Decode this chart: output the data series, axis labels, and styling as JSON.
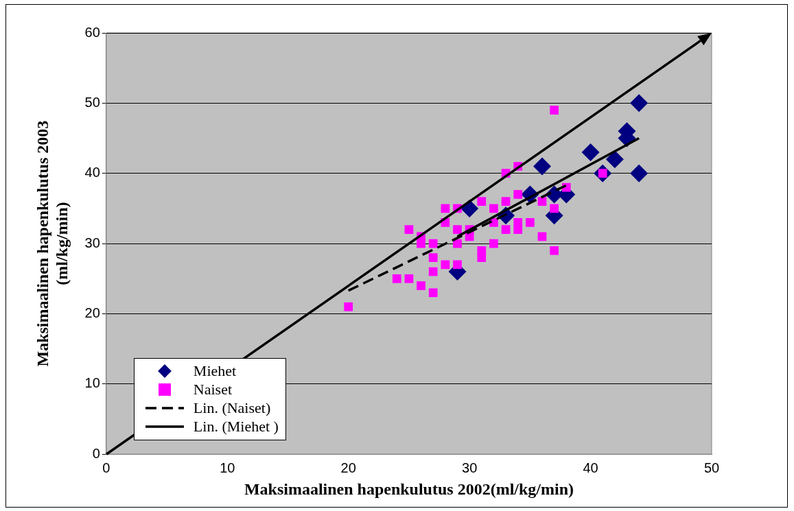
{
  "chart_data": {
    "type": "scatter",
    "xlabel": "Maksimaalinen hapenkulutus 2002(ml/kg/min)",
    "ylabel": "Maksimaalinen hapenkulutus 2003\n(ml/kg/min)",
    "xlim": [
      0,
      50
    ],
    "xticks": [
      0,
      10,
      20,
      30,
      40,
      50
    ],
    "ylim": [
      0,
      60
    ],
    "yticks": [
      0,
      10,
      20,
      30,
      40,
      50,
      60
    ],
    "grid": "y",
    "legend": "bottom left",
    "series": [
      {
        "name": "Miehet",
        "marker": "diamond",
        "color": "#000080",
        "x": [
          29,
          30,
          33,
          35,
          36,
          37,
          37,
          38,
          40,
          41,
          42,
          43,
          43,
          44,
          44
        ],
        "values": [
          26,
          35,
          34,
          37,
          41,
          37,
          34,
          37,
          43,
          40,
          42,
          46,
          45,
          50,
          40
        ]
      },
      {
        "name": "Naiset",
        "marker": "square",
        "color": "#ff00ff",
        "x": [
          20,
          24,
          25,
          25,
          26,
          26,
          26,
          27,
          27,
          27,
          27,
          28,
          28,
          28,
          29,
          29,
          29,
          29,
          30,
          30,
          31,
          31,
          31,
          32,
          32,
          32,
          33,
          33,
          33,
          34,
          34,
          34,
          34,
          35,
          36,
          36,
          37,
          37,
          37,
          38,
          41
        ],
        "values": [
          21,
          25,
          25,
          32,
          31,
          30,
          24,
          23,
          26,
          28,
          30,
          35,
          33,
          27,
          35,
          32,
          30,
          27,
          32,
          31,
          36,
          29,
          28,
          35,
          33,
          30,
          40,
          36,
          32,
          41,
          37,
          33,
          32,
          33,
          36,
          31,
          49,
          35,
          29,
          38,
          40
        ]
      },
      {
        "name": "Lin. (Naiset)",
        "type": "line",
        "marker": "none",
        "line_style": "dashed",
        "color": "#000000",
        "x": [
          20,
          38
        ],
        "values": [
          23.3,
          38.3
        ]
      },
      {
        "name": "Lin. (Miehet )",
        "type": "line",
        "marker": "none",
        "line_style": "solid",
        "color": "#000000",
        "x": [
          29,
          44
        ],
        "values": [
          31,
          45
        ]
      }
    ]
  }
}
